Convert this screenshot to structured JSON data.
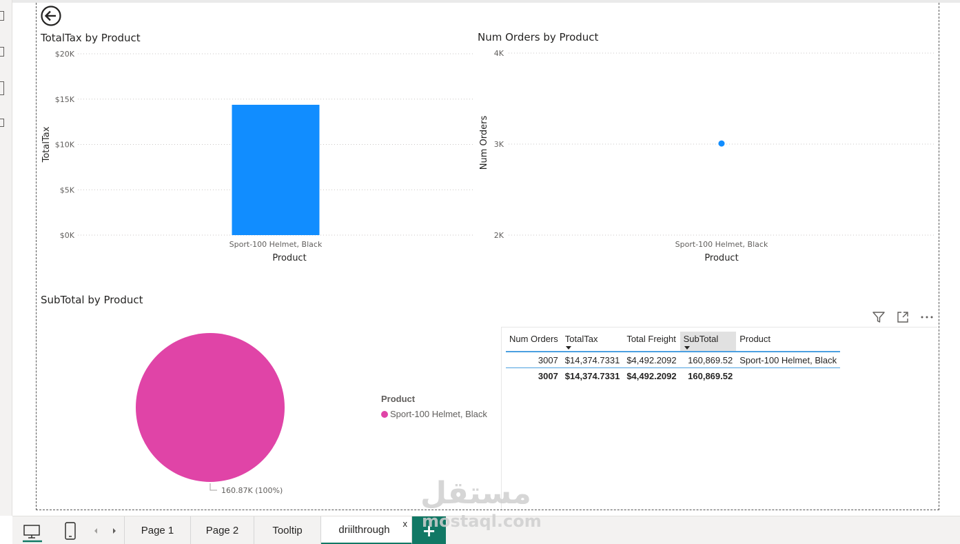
{
  "colors": {
    "bar": "#118DFF",
    "point": "#118DFF",
    "pie": "#E044A7",
    "accent": "#117865",
    "table_line": "#4a9fe0"
  },
  "back_button": {
    "icon": "back-arrow-icon"
  },
  "visuals": {
    "totaltax": {
      "title": "TotalTax by Product"
    },
    "numorders": {
      "title": "Num Orders by Product"
    },
    "subtotal": {
      "title": "SubTotal by Product",
      "data_label": "160.87K (100%)"
    }
  },
  "chart_data": [
    {
      "type": "bar",
      "title": "TotalTax by Product",
      "categories": [
        "Sport-100 Helmet, Black"
      ],
      "values": [
        14374.7331
      ],
      "xlabel": "Product",
      "ylabel": "TotalTax",
      "ylim": [
        0,
        20000
      ],
      "yticks": [
        "$0K",
        "$5K",
        "$10K",
        "$15K",
        "$20K"
      ],
      "grid": true
    },
    {
      "type": "scatter",
      "title": "Num Orders by Product",
      "categories": [
        "Sport-100 Helmet, Black"
      ],
      "values": [
        3007
      ],
      "xlabel": "Product",
      "ylabel": "Num Orders",
      "ylim": [
        2000,
        4000
      ],
      "yticks": [
        "2K",
        "3K",
        "4K"
      ],
      "grid": true
    },
    {
      "type": "pie",
      "title": "SubTotal by Product",
      "categories": [
        "Sport-100 Helmet, Black"
      ],
      "values": [
        160869.52
      ],
      "data_labels": [
        "160.87K (100%)"
      ],
      "legend_title": "Product",
      "legend_position": "right"
    }
  ],
  "legend": {
    "title": "Product",
    "items": [
      "Sport-100 Helmet, Black"
    ]
  },
  "table": {
    "headers": [
      "Num Orders",
      "TotalTax",
      "Total Freight",
      "SubTotal",
      "Product"
    ],
    "rows": [
      [
        "3007",
        "$14,374.7331",
        "$4,492.2092",
        "160,869.52",
        "Sport-100 Helmet, Black"
      ]
    ],
    "totals": [
      "3007",
      "$14,374.7331",
      "$4,492.2092",
      "160,869.52",
      ""
    ],
    "header_icons": [
      "filter-icon",
      "focus-mode-icon",
      "more-options-icon"
    ]
  },
  "tabs": [
    {
      "label": "Page 1"
    },
    {
      "label": "Page 2"
    },
    {
      "label": "Tooltip"
    },
    {
      "label": "driilthrough",
      "close": "x"
    }
  ],
  "add_tab_label": "+",
  "watermark": {
    "logo": "مستقل",
    "text": "mostaql.com"
  }
}
